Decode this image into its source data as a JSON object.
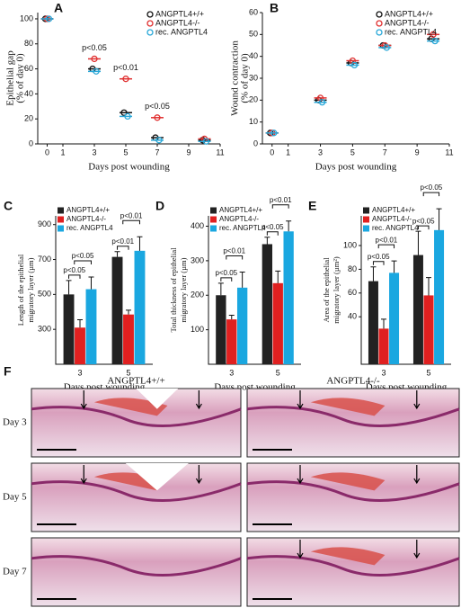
{
  "chart_data": [
    {
      "type": "dot",
      "panel": "A",
      "ylabel": [
        "Epithelial gap",
        "(% of day 0)"
      ],
      "xlabel": "Days post wounding",
      "x": [
        0,
        3,
        5,
        7,
        10
      ],
      "xlim": [
        -0.6,
        11
      ],
      "xticks": [
        0,
        1,
        3,
        5,
        7,
        9,
        11
      ],
      "ylim": [
        0,
        105
      ],
      "yticks": [
        0,
        20,
        40,
        60,
        80,
        100
      ],
      "series": [
        {
          "name": "ANGPTL4+/+",
          "color": "#111111",
          "values": [
            100,
            60,
            25,
            5,
            3
          ]
        },
        {
          "name": "ANGPTL4-/-",
          "color": "#e03030",
          "values": [
            100,
            68,
            52,
            21,
            4
          ]
        },
        {
          "name": "rec. ANGPTL4",
          "color": "#2aa8d8",
          "values": [
            100,
            58,
            22,
            3,
            2
          ]
        }
      ],
      "annotations": [
        "p<0.05",
        "p<0.01",
        "p<0.05"
      ]
    },
    {
      "type": "dot",
      "panel": "B",
      "ylabel": [
        "Wound contraction",
        "(% of day 0)"
      ],
      "xlabel": "Days post wounding",
      "x": [
        0,
        3,
        5,
        7,
        10
      ],
      "xlim": [
        -0.6,
        11
      ],
      "xticks": [
        0,
        1,
        3,
        5,
        7,
        9,
        11
      ],
      "ylim": [
        0,
        60
      ],
      "yticks": [
        0,
        10,
        20,
        30,
        40,
        50,
        60
      ],
      "series": [
        {
          "name": "ANGPTL4+/+",
          "color": "#111111",
          "values": [
            5,
            20,
            37,
            45,
            48
          ]
        },
        {
          "name": "ANGPTL4-/-",
          "color": "#e03030",
          "values": [
            5,
            21,
            38,
            45,
            50
          ]
        },
        {
          "name": "rec. ANGPTL4",
          "color": "#2aa8d8",
          "values": [
            5,
            19,
            36,
            44,
            47
          ]
        }
      ]
    },
    {
      "type": "bar",
      "panel": "C",
      "ylabel": [
        "Length of the epithelial",
        "migratory layer (µm)"
      ],
      "xlabel": "Days post wounding",
      "categories": [
        "3",
        "5"
      ],
      "ylim": [
        100,
        950
      ],
      "yticks": [
        300,
        500,
        700,
        900
      ],
      "series": [
        {
          "name": "ANGPTL4+/+",
          "color": "#222222",
          "values": [
            500,
            715
          ],
          "errors": [
            80,
            30
          ]
        },
        {
          "name": "ANGPTL4-/-",
          "color": "#e02020",
          "values": [
            310,
            385
          ],
          "errors": [
            45,
            25
          ]
        },
        {
          "name": "rec. ANGPTL4",
          "color": "#1aa7e0",
          "values": [
            530,
            750
          ],
          "errors": [
            70,
            80
          ]
        }
      ],
      "annotations": [
        "p<0.05",
        "p<0.05",
        "p<0.01",
        "p<0.01"
      ]
    },
    {
      "type": "bar",
      "panel": "D",
      "ylabel": [
        "Total thickness of epithelial",
        "migratory layer (µm)"
      ],
      "xlabel": "Days post wounding",
      "categories": [
        "3",
        "5"
      ],
      "ylim": [
        0,
        430
      ],
      "yticks": [
        100,
        200,
        300,
        400
      ],
      "series": [
        {
          "name": "ANGPTL4+/+",
          "color": "#222222",
          "values": [
            200,
            348
          ],
          "errors": [
            35,
            20
          ]
        },
        {
          "name": "ANGPTL4-/-",
          "color": "#e02020",
          "values": [
            130,
            235
          ],
          "errors": [
            12,
            35
          ]
        },
        {
          "name": "rec. ANGPTL4",
          "color": "#1aa7e0",
          "values": [
            222,
            385
          ],
          "errors": [
            45,
            30
          ]
        }
      ],
      "annotations": [
        "p<0.05",
        "p<0.01",
        "p<0.05",
        "p<0.01"
      ]
    },
    {
      "type": "bar",
      "panel": "E",
      "ylabel": [
        "Area of the epithelial",
        "migratory layer (µm²)"
      ],
      "xlabel": "Days post wounding",
      "categories": [
        "3",
        "5"
      ],
      "ylim": [
        0,
        125
      ],
      "yticks": [
        40,
        60,
        80,
        100
      ],
      "series": [
        {
          "name": "ANGPTL4+/+",
          "color": "#222222",
          "values": [
            70,
            92
          ],
          "errors": [
            12,
            20
          ]
        },
        {
          "name": "ANGPTL4-/-",
          "color": "#e02020",
          "values": [
            30,
            58
          ],
          "errors": [
            8,
            15
          ]
        },
        {
          "name": "rec. ANGPTL4",
          "color": "#1aa7e0",
          "values": [
            77,
            113
          ],
          "errors": [
            10,
            18
          ]
        }
      ],
      "annotations": [
        "p<0.05",
        "p<0.01",
        "p<0.05",
        "p<0.05"
      ]
    }
  ],
  "histology": {
    "panel": "F",
    "columns": [
      "ANGPTL4+/+",
      "ANGPTL4-/-"
    ],
    "rows": [
      "Day 3",
      "Day 5",
      "Day 7"
    ]
  }
}
